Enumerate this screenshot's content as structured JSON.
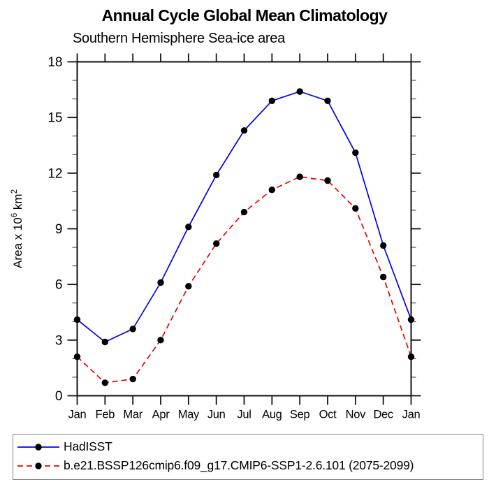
{
  "chart_data": {
    "type": "line",
    "title": "Annual Cycle Global Mean Climatology",
    "subtitle": "Southern Hemisphere Sea-ice area",
    "categories": [
      "Jan",
      "Feb",
      "Mar",
      "Apr",
      "May",
      "Jun",
      "Jul",
      "Aug",
      "Sep",
      "Oct",
      "Nov",
      "Dec",
      "Jan"
    ],
    "xlabel": "",
    "ylabel": "Area x 10^6 km^2",
    "ylabel_parts": [
      {
        "text": "Area x 10"
      },
      {
        "text": "6",
        "sup": true
      },
      {
        "text": " km"
      },
      {
        "text": "2",
        "sup": true
      }
    ],
    "ylim": [
      0,
      18
    ],
    "ytick_major": [
      0,
      3,
      6,
      9,
      12,
      15,
      18
    ],
    "ytick_minor_step": 1,
    "grid": false,
    "legend_position": "bottom box, outside plot",
    "series": [
      {
        "name": "HadISST",
        "color": "#0000ee",
        "dash": "solid",
        "marker": "circle",
        "marker_color": "#000000",
        "values": [
          4.1,
          2.9,
          3.6,
          6.1,
          9.1,
          11.9,
          14.3,
          15.9,
          16.4,
          15.9,
          13.1,
          8.1,
          4.1
        ]
      },
      {
        "name": "b.e21.BSSP126cmip6.f09_g17.CMIP6-SSP1-2.6.101 (2075-2099)",
        "color": "#ee0000",
        "dash": "dashed",
        "marker": "circle",
        "marker_color": "#000000",
        "values": [
          2.1,
          0.7,
          0.9,
          3.0,
          5.9,
          8.2,
          9.9,
          11.1,
          11.8,
          11.6,
          10.1,
          6.4,
          2.1
        ]
      }
    ]
  },
  "colors": {
    "axis": "#111111",
    "background": "#ffffff",
    "legend_border": "#7f7f7f"
  }
}
